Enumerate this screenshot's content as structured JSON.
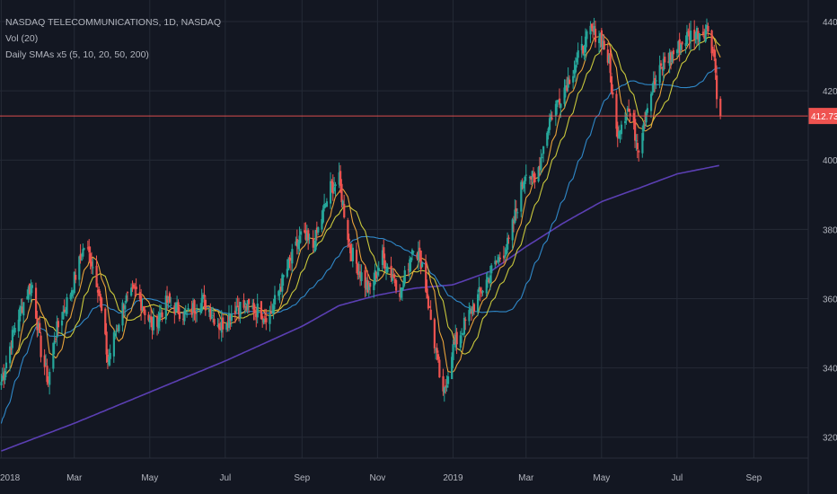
{
  "legend": {
    "title": "NASDAQ TELECOMMUNICATIONS, 1D, NASDAQ",
    "volume": "Vol (20)",
    "smas": "Daily SMAs x5 (5, 10, 20, 50, 200)"
  },
  "colors": {
    "background": "#131722",
    "grid": "#242a36",
    "up": "#26a69a",
    "down": "#ef5350",
    "sma_fast": "#e8a23a",
    "sma_mid": "#c9c83c",
    "sma_50": "#2f88c8",
    "sma_200": "#5b3fb3",
    "price_line": "#ef5350"
  },
  "chart_data": {
    "type": "candlestick",
    "last_price": 412.73,
    "last_price_label": "412.73",
    "ylim": [
      315,
      445
    ],
    "y_ticks": [
      320,
      340,
      360,
      380,
      400,
      420,
      440
    ],
    "y_tick_labels": [
      "320.00",
      "340.00",
      "360.00",
      "380.00",
      "400.00",
      "420.00",
      "440.00"
    ],
    "x_ticks": [
      "2018",
      "Mar",
      "May",
      "Jul",
      "Sep",
      "Nov",
      "2019",
      "Mar",
      "May",
      "Jul",
      "Sep"
    ],
    "x_tick_dates": [
      "2018-01-01",
      "2018-03-01",
      "2018-05-01",
      "2018-07-01",
      "2018-09-01",
      "2018-11-01",
      "2019-01-01",
      "2019-03-01",
      "2019-05-01",
      "2019-07-01",
      "2019-09-01"
    ],
    "xlim": [
      "2017-12-31",
      "2019-10-15"
    ],
    "close_anchors": [
      [
        "2018-01-01",
        336
      ],
      [
        "2018-01-12",
        352
      ],
      [
        "2018-01-22",
        362
      ],
      [
        "2018-01-26",
        364
      ],
      [
        "2018-02-02",
        345
      ],
      [
        "2018-02-08",
        336
      ],
      [
        "2018-02-13",
        349
      ],
      [
        "2018-02-26",
        362
      ],
      [
        "2018-03-09",
        375
      ],
      [
        "2018-03-14",
        372
      ],
      [
        "2018-03-20",
        364
      ],
      [
        "2018-03-28",
        342
      ],
      [
        "2018-04-10",
        359
      ],
      [
        "2018-04-20",
        362
      ],
      [
        "2018-05-03",
        352
      ],
      [
        "2018-05-15",
        359
      ],
      [
        "2018-05-31",
        355
      ],
      [
        "2018-06-12",
        360
      ],
      [
        "2018-06-27",
        352
      ],
      [
        "2018-07-10",
        358
      ],
      [
        "2018-07-25",
        357
      ],
      [
        "2018-08-06",
        355
      ],
      [
        "2018-08-17",
        366
      ],
      [
        "2018-08-31",
        378
      ],
      [
        "2018-09-10",
        375
      ],
      [
        "2018-09-24",
        392
      ],
      [
        "2018-10-01",
        394
      ],
      [
        "2018-10-10",
        374
      ],
      [
        "2018-10-25",
        362
      ],
      [
        "2018-11-05",
        372
      ],
      [
        "2018-11-20",
        362
      ],
      [
        "2018-11-30",
        376
      ],
      [
        "2018-12-07",
        370
      ],
      [
        "2018-12-17",
        347
      ],
      [
        "2018-12-24",
        331
      ],
      [
        "2018-12-31",
        345
      ],
      [
        "2019-01-15",
        356
      ],
      [
        "2019-02-01",
        368
      ],
      [
        "2019-02-15",
        376
      ],
      [
        "2019-03-01",
        398
      ],
      [
        "2019-03-08",
        393
      ],
      [
        "2019-03-20",
        412
      ],
      [
        "2019-04-05",
        424
      ],
      [
        "2019-04-22",
        437
      ],
      [
        "2019-04-30",
        436
      ],
      [
        "2019-05-07",
        428
      ],
      [
        "2019-05-13",
        408
      ],
      [
        "2019-05-22",
        415
      ],
      [
        "2019-05-31",
        404
      ],
      [
        "2019-06-07",
        417
      ],
      [
        "2019-06-20",
        428
      ],
      [
        "2019-07-01",
        432
      ],
      [
        "2019-07-10",
        436
      ],
      [
        "2019-07-26",
        438
      ],
      [
        "2019-07-31",
        430
      ],
      [
        "2019-08-02",
        420
      ],
      [
        "2019-08-05",
        412.73
      ]
    ],
    "sma200_anchors": [
      [
        "2018-01-01",
        316
      ],
      [
        "2018-03-01",
        324
      ],
      [
        "2018-05-01",
        333
      ],
      [
        "2018-07-01",
        342
      ],
      [
        "2018-09-01",
        352
      ],
      [
        "2018-10-01",
        358
      ],
      [
        "2018-11-01",
        361
      ],
      [
        "2018-12-01",
        363
      ],
      [
        "2019-01-01",
        364
      ],
      [
        "2019-02-01",
        368
      ],
      [
        "2019-03-01",
        375
      ],
      [
        "2019-04-01",
        382
      ],
      [
        "2019-05-01",
        388
      ],
      [
        "2019-06-01",
        392
      ],
      [
        "2019-07-01",
        396
      ],
      [
        "2019-08-05",
        398.5
      ]
    ]
  }
}
